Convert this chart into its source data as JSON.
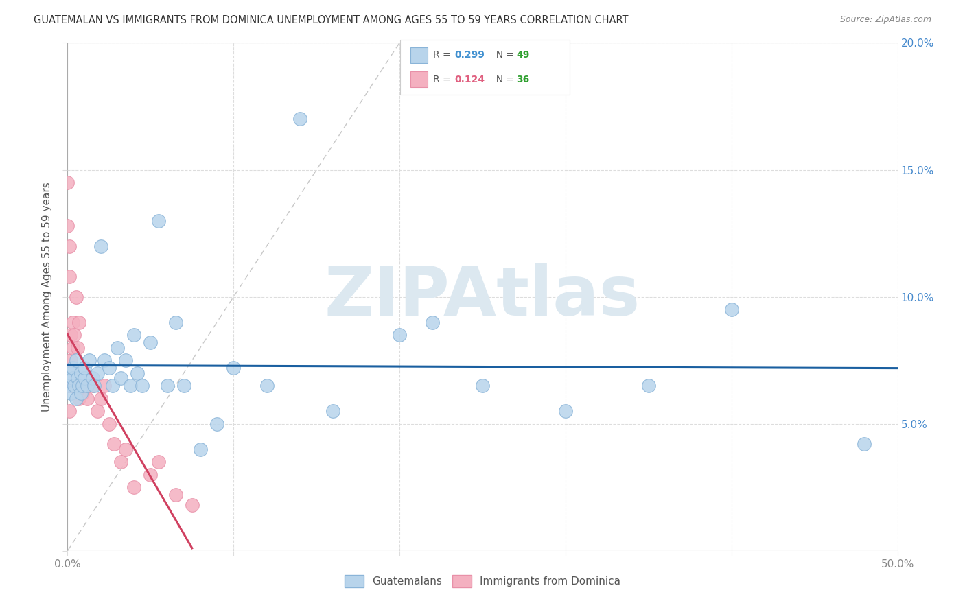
{
  "title": "GUATEMALAN VS IMMIGRANTS FROM DOMINICA UNEMPLOYMENT AMONG AGES 55 TO 59 YEARS CORRELATION CHART",
  "source": "Source: ZipAtlas.com",
  "ylabel": "Unemployment Among Ages 55 to 59 years",
  "xlim": [
    0,
    0.5
  ],
  "ylim": [
    0,
    0.2
  ],
  "color_blue": "#b8d4eb",
  "color_blue_edge": "#8ab4d8",
  "color_pink": "#f4b0c0",
  "color_pink_edge": "#e890a8",
  "color_blue_line": "#1a5fa0",
  "color_pink_line": "#d04060",
  "color_diag": "#c8c8c8",
  "color_R_blue": "#4090d0",
  "color_N_green": "#30a030",
  "color_R_pink": "#e06080",
  "color_axis_blue": "#4488cc",
  "color_grid": "#dddddd",
  "color_title": "#333333",
  "color_source": "#888888",
  "color_ylabel": "#555555",
  "color_tick": "#888888",
  "watermark": "ZIPAtlas",
  "watermark_color": "#dce8f0",
  "legend_label1": "Guatemalans",
  "legend_label2": "Immigrants from Dominica",
  "blue_x": [
    0.001,
    0.002,
    0.002,
    0.003,
    0.003,
    0.004,
    0.005,
    0.005,
    0.006,
    0.007,
    0.008,
    0.008,
    0.009,
    0.01,
    0.01,
    0.012,
    0.013,
    0.015,
    0.016,
    0.018,
    0.02,
    0.022,
    0.025,
    0.027,
    0.03,
    0.032,
    0.035,
    0.038,
    0.04,
    0.042,
    0.045,
    0.05,
    0.055,
    0.06,
    0.065,
    0.07,
    0.08,
    0.09,
    0.1,
    0.12,
    0.14,
    0.16,
    0.2,
    0.22,
    0.25,
    0.3,
    0.35,
    0.4,
    0.48
  ],
  "blue_y": [
    0.065,
    0.07,
    0.062,
    0.068,
    0.072,
    0.065,
    0.06,
    0.075,
    0.068,
    0.065,
    0.07,
    0.062,
    0.065,
    0.068,
    0.072,
    0.065,
    0.075,
    0.068,
    0.065,
    0.07,
    0.12,
    0.075,
    0.072,
    0.065,
    0.08,
    0.068,
    0.075,
    0.065,
    0.085,
    0.07,
    0.065,
    0.082,
    0.13,
    0.065,
    0.09,
    0.065,
    0.04,
    0.05,
    0.072,
    0.065,
    0.17,
    0.055,
    0.085,
    0.09,
    0.065,
    0.055,
    0.065,
    0.095,
    0.042
  ],
  "pink_x": [
    0.0,
    0.0,
    0.001,
    0.001,
    0.001,
    0.001,
    0.002,
    0.002,
    0.002,
    0.003,
    0.003,
    0.004,
    0.004,
    0.005,
    0.005,
    0.006,
    0.006,
    0.007,
    0.007,
    0.008,
    0.009,
    0.01,
    0.012,
    0.015,
    0.018,
    0.02,
    0.022,
    0.025,
    0.028,
    0.032,
    0.035,
    0.04,
    0.05,
    0.055,
    0.065,
    0.075
  ],
  "pink_y": [
    0.145,
    0.128,
    0.12,
    0.108,
    0.065,
    0.055,
    0.085,
    0.075,
    0.065,
    0.09,
    0.08,
    0.085,
    0.065,
    0.1,
    0.065,
    0.08,
    0.065,
    0.09,
    0.06,
    0.065,
    0.062,
    0.065,
    0.06,
    0.065,
    0.055,
    0.06,
    0.065,
    0.05,
    0.042,
    0.035,
    0.04,
    0.025,
    0.03,
    0.035,
    0.022,
    0.018
  ]
}
